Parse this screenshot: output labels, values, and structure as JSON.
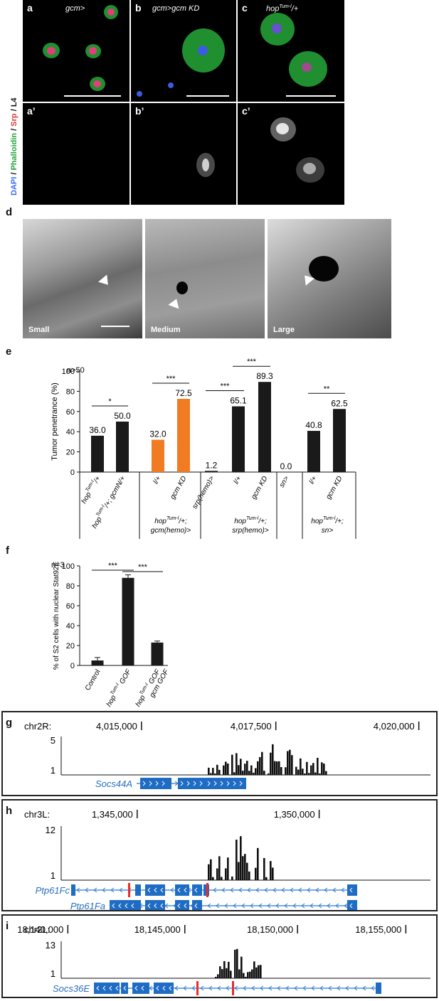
{
  "panel_letters": {
    "a": "a",
    "b": "b",
    "c": "c",
    "a2": "a’",
    "b2": "b’",
    "c2": "c’",
    "d": "d",
    "e": "e",
    "f": "f",
    "g": "g",
    "h": "h",
    "i": "i"
  },
  "micro": {
    "stain_dapi": "DAPI",
    "stain_phalloidin": "Phalloidin",
    "stain_srp": "Srp",
    "stain_l4": "L4",
    "sep": " / ",
    "titles": {
      "a": "gcm>",
      "b": "gcm>gcm KD",
      "c": "hop"
    }
  },
  "wing": {
    "labels": [
      "Small",
      "Medium",
      "Large"
    ]
  },
  "chart_data": [
    {
      "type": "bar",
      "panel": "e",
      "n_label": "n>50",
      "ylabel": "Tumor penetrance (%)",
      "ylim": [
        0,
        100
      ],
      "yticks": [
        0,
        20,
        40,
        60,
        80,
        100
      ],
      "categories": [
        "hopTum-l/+",
        "hopTum-l/+; gcmN/+",
        "l/+",
        "gcm KD",
        "srp(hemo)>",
        "l/+",
        "gcm KD",
        "sn>",
        "l/+",
        "gcm KD"
      ],
      "values": [
        36.0,
        50.0,
        32.0,
        72.5,
        1.2,
        65.1,
        89.3,
        0.0,
        40.8,
        62.5
      ],
      "value_labels": [
        "36.0",
        "50.0",
        "32.0",
        "72.5",
        "1.2",
        "65.1",
        "89.3",
        "0.0",
        "40.8",
        "62.5"
      ],
      "colors": [
        "#1a1a1a",
        "#1a1a1a",
        "#f07b22",
        "#f07b22",
        "#1a1a1a",
        "#1a1a1a",
        "#1a1a1a",
        "#1a1a1a",
        "#1a1a1a",
        "#1a1a1a"
      ],
      "significance": [
        {
          "from": 0,
          "to": 1,
          "label": "*"
        },
        {
          "from": 2,
          "to": 3,
          "label": "***"
        },
        {
          "from": 4,
          "to": 5,
          "label": "***"
        },
        {
          "from": 5,
          "to": 6,
          "label": "***"
        },
        {
          "from": 8,
          "to": 9,
          "label": "**"
        }
      ],
      "group_labels": [
        {
          "lines": [
            "hopTum-l/+;",
            "gcm(hemo)>"
          ]
        },
        {
          "lines": [
            "hopTum-l/+;",
            "srp(hemo)>"
          ]
        },
        {
          "lines": [
            "hopTum-l/+;",
            "sn>"
          ]
        }
      ]
    },
    {
      "type": "bar",
      "panel": "f",
      "n_label": "n=3",
      "ylabel": "% of S2 cells with nuclear Stat92E",
      "ylim": [
        0,
        100
      ],
      "yticks": [
        0,
        20,
        40,
        60,
        80,
        100
      ],
      "categories": [
        "Control",
        "hopTum-l GOF",
        "hopTum-l GOF; gcm GOF"
      ],
      "values": [
        5,
        88,
        23
      ],
      "errors": [
        3,
        3,
        1.5
      ],
      "significance": [
        {
          "from": 0,
          "to": 1,
          "label": "***"
        },
        {
          "from": 1,
          "to": 2,
          "label": "***"
        }
      ]
    }
  ],
  "tracks": [
    {
      "panel": "g",
      "chrom": "chr2R:",
      "ticks": [
        {
          "label": "4,015,000",
          "x": 0.32
        },
        {
          "label": "4,017,500",
          "x": 0.63
        },
        {
          "label": "4,020,000",
          "x": 0.96
        }
      ],
      "ymax": "5",
      "ymin": "1",
      "gene": "Socs44A"
    },
    {
      "panel": "h",
      "chrom": "chr3L:",
      "ticks": [
        {
          "label": "1,345,000",
          "x": 0.31
        },
        {
          "label": "1,350,000",
          "x": 0.73
        }
      ],
      "ymax": "12",
      "ymin": "1",
      "genes": [
        "Ptp61Fc",
        "Ptp61Fa"
      ]
    },
    {
      "panel": "i",
      "chrom": "chr2L:",
      "ticks": [
        {
          "label": "18,140,000",
          "x": 0.15
        },
        {
          "label": "18,145,000",
          "x": 0.42
        },
        {
          "label": "18,150,000",
          "x": 0.68
        },
        {
          "label": "18,155,000",
          "x": 0.93
        }
      ],
      "ymax": "13",
      "ymin": "1",
      "gene": "Socs36E"
    }
  ]
}
